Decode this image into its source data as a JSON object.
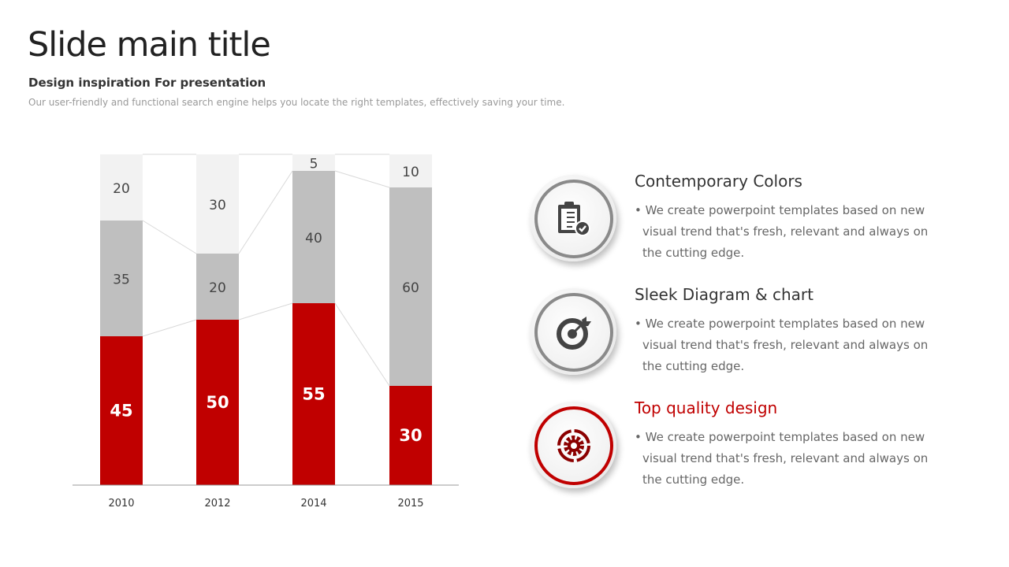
{
  "header": {
    "title": "Slide main title",
    "subtitle": "Design inspiration For presentation",
    "description": "Our user-friendly and functional search engine helps you locate the right templates, effectively saving your time."
  },
  "chart_data": {
    "type": "bar",
    "stacked": true,
    "categories": [
      "2010",
      "2012",
      "2014",
      "2015"
    ],
    "series": [
      {
        "values": [
          45,
          50,
          55,
          30
        ],
        "color": "#c00000"
      },
      {
        "values": [
          35,
          20,
          40,
          60
        ],
        "color": "#bfbfbf"
      },
      {
        "values": [
          20,
          30,
          5,
          10
        ],
        "color": "#f2f2f2"
      }
    ],
    "ylim": [
      0,
      100
    ],
    "grid": false,
    "legend": "none"
  },
  "features": [
    {
      "title": "Contemporary Colors",
      "body": "• We create powerpoint templates based on new visual trend that's fresh, relevant and always on the cutting edge.",
      "icon": "clipboard-check-icon",
      "color": "#333333"
    },
    {
      "title": "Sleek Diagram & chart",
      "body": "• We create powerpoint templates based on new visual trend that's fresh, relevant and always on the cutting edge.",
      "icon": "target-icon",
      "color": "#333333"
    },
    {
      "title": "Top quality design",
      "body": "• We create powerpoint templates based on new visual trend that's fresh, relevant and always on the cutting edge.",
      "icon": "gear-icon",
      "color": "#c00000"
    }
  ]
}
